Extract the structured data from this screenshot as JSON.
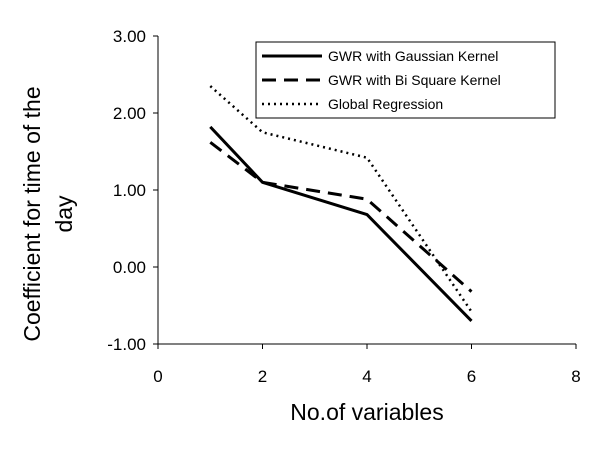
{
  "chart_data": {
    "type": "line",
    "title": "",
    "xlabel": "No.of variables",
    "ylabel_lines": [
      "Coefficient for time of the",
      "day"
    ],
    "xlim": [
      0,
      8
    ],
    "ylim": [
      -1,
      3
    ],
    "xticks": [
      "0",
      "2",
      "4",
      "6",
      "8"
    ],
    "yticks": [
      "-1.00",
      "0.00",
      "1.00",
      "2.00",
      "3.00"
    ],
    "x": [
      1,
      2,
      4,
      6
    ],
    "series": [
      {
        "name": "GWR with Gaussian Kernel",
        "values": [
          1.82,
          1.1,
          0.68,
          -0.7
        ],
        "style": "solid"
      },
      {
        "name": "GWR with Bi Square Kernel",
        "values": [
          1.62,
          1.1,
          0.88,
          -0.32
        ],
        "style": "dashed"
      },
      {
        "name": "Global Regression",
        "values": [
          2.35,
          1.75,
          1.42,
          -0.58
        ],
        "style": "dotted"
      }
    ],
    "grid": false,
    "legend": "top-right",
    "line_color": "#000000"
  }
}
